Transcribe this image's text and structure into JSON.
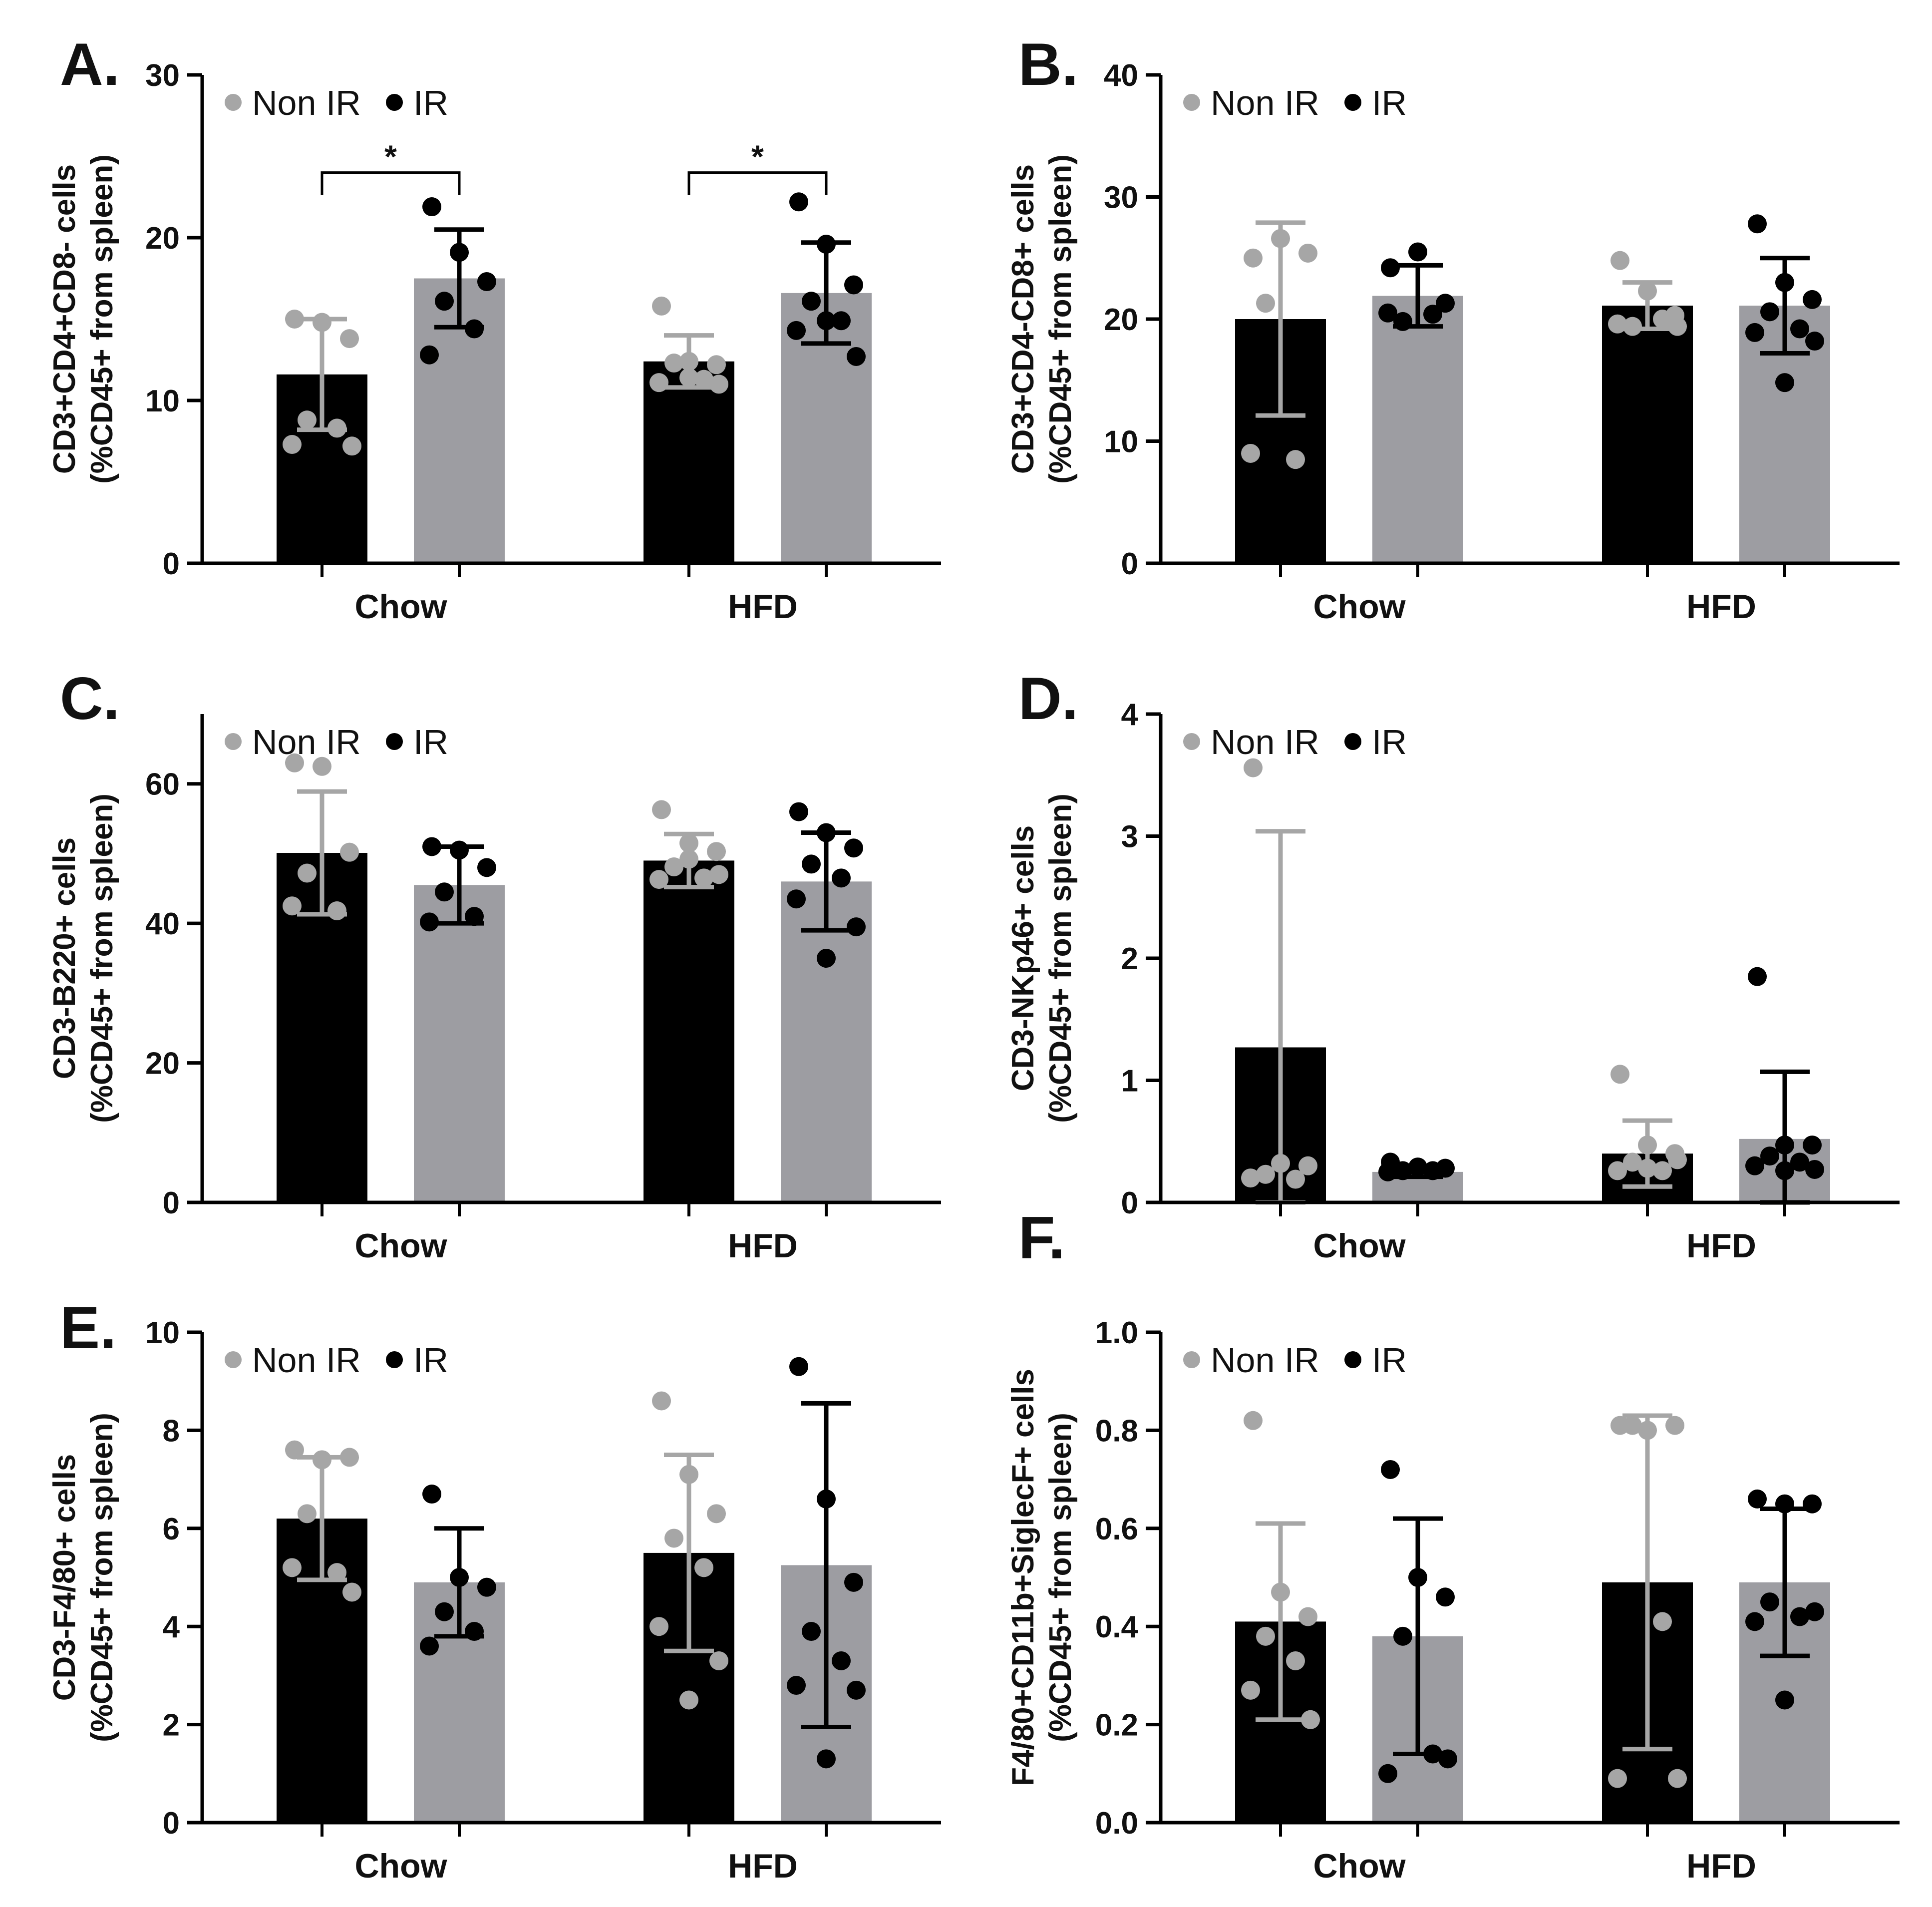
{
  "colors": {
    "black": "#000000",
    "gray": "#9d9da2",
    "light": "#a6a6a6"
  },
  "legend": {
    "non_ir": "Non IR",
    "ir": "IR"
  },
  "chart_data": [
    {
      "type": "bar",
      "label": "A.",
      "ylabel": [
        "CD3+CD4+CD8- cells",
        "(%CD45+ from spleen)"
      ],
      "ylim": [
        0,
        30
      ],
      "ticks": [
        "0",
        "10",
        "20",
        "30"
      ],
      "categories": [
        "Chow",
        "HFD"
      ],
      "series": [
        {
          "name": "Non IR",
          "means": [
            11.6,
            12.4
          ],
          "sd": [
            3.4,
            1.6
          ],
          "points": [
            [
              15,
              14.8,
              13.8,
              8.8,
              8.3,
              7.3,
              7.2
            ],
            [
              15.8,
              12.4,
              12.2,
              12.3,
              11.3,
              11.1,
              11.0,
              11.4
            ]
          ]
        },
        {
          "name": "IR",
          "means": [
            17.5,
            16.6
          ],
          "sd": [
            3.0,
            3.1
          ],
          "points": [
            [
              21.9,
              19.1,
              17.3,
              16.1,
              14.4,
              12.8
            ],
            [
              22.2,
              19.6,
              17.1,
              16.1,
              14.9,
              14.3,
              12.7,
              14.9
            ]
          ]
        }
      ],
      "significance": [
        {
          "category": "Chow",
          "label": "*",
          "y": 24.0
        },
        {
          "category": "HFD",
          "label": "*",
          "y": 24.0
        }
      ]
    },
    {
      "type": "bar",
      "label": "B.",
      "ylabel": [
        "CD3+CD4-CD8+ cells",
        "(%CD45+ from spleen)"
      ],
      "ylim": [
        0,
        40
      ],
      "ticks": [
        "0",
        "10",
        "20",
        "30",
        "40"
      ],
      "categories": [
        "Chow",
        "HFD"
      ],
      "series": [
        {
          "name": "Non IR",
          "means": [
            20.0,
            21.1
          ],
          "sd": [
            7.9,
            1.9
          ],
          "points": [
            [
              25.0,
              26.6,
              25.4,
              21.3,
              8.5,
              9.0
            ],
            [
              24.8,
              22.3,
              20.3,
              19.4,
              20.0,
              19.6,
              19.4
            ]
          ]
        },
        {
          "name": "IR",
          "means": [
            21.9,
            21.1
          ],
          "sd": [
            2.5,
            3.9
          ],
          "points": [
            [
              24.2,
              25.5,
              21.3,
              19.8,
              20.4,
              20.5
            ],
            [
              27.8,
              23.0,
              21.6,
              20.6,
              19.2,
              18.9,
              18.2,
              14.8
            ]
          ]
        }
      ],
      "significance": []
    },
    {
      "type": "bar",
      "label": "C.",
      "ylabel": [
        "CD3-B220+ cells",
        "(%CD45+ from spleen)"
      ],
      "ylim": [
        0,
        70
      ],
      "ticks": [
        "0",
        "20",
        "40",
        "60"
      ],
      "categories": [
        "Chow",
        "HFD"
      ],
      "series": [
        {
          "name": "Non IR",
          "means": [
            50.1,
            49.0
          ],
          "sd": [
            8.8,
            3.8
          ],
          "points": [
            [
              63.0,
              62.5,
              50.2,
              47.2,
              41.8,
              42.5
            ],
            [
              56.3,
              51.5,
              50.3,
              48.1,
              46.5,
              46.3,
              47.0,
              49.2
            ]
          ]
        },
        {
          "name": "IR",
          "means": [
            45.5,
            46.0
          ],
          "sd": [
            5.5,
            7.0
          ],
          "points": [
            [
              51.0,
              50.5,
              48.0,
              44.5,
              41.0,
              40.2
            ],
            [
              56.0,
              53.0,
              50.8,
              48.5,
              46.5,
              43.5,
              39.5,
              35.0
            ]
          ]
        }
      ],
      "significance": []
    },
    {
      "type": "bar",
      "label": "D.",
      "ylabel": [
        "CD3-NKp46+ cells",
        "(%CD45+ from spleen)"
      ],
      "ylim": [
        0,
        4
      ],
      "ticks": [
        "0",
        "1",
        "2",
        "3",
        "4"
      ],
      "categories": [
        "Chow",
        "HFD"
      ],
      "series": [
        {
          "name": "Non IR",
          "means": [
            1.27,
            0.4
          ],
          "sd": [
            1.77,
            0.27
          ],
          "points": [
            [
              3.56,
              0.32,
              0.3,
              0.23,
              0.19,
              0.2
            ],
            [
              1.05,
              0.47,
              0.4,
              0.33,
              0.26,
              0.26,
              0.35,
              0.28
            ]
          ]
        },
        {
          "name": "IR",
          "means": [
            0.25,
            0.52
          ],
          "sd": [
            0.04,
            0.55
          ],
          "points": [
            [
              0.33,
              0.29,
              0.28,
              0.26,
              0.26,
              0.25
            ],
            [
              1.85,
              0.47,
              0.47,
              0.38,
              0.33,
              0.3,
              0.27,
              0.26
            ]
          ]
        }
      ],
      "significance": []
    },
    {
      "type": "bar",
      "label": "E.",
      "ylabel": [
        "CD3-F4/80+ cells",
        "(%CD45+ from spleen)"
      ],
      "ylim": [
        0,
        10
      ],
      "ticks": [
        "0",
        "2",
        "4",
        "6",
        "8",
        "10"
      ],
      "categories": [
        "Chow",
        "HFD"
      ],
      "series": [
        {
          "name": "Non IR",
          "means": [
            6.2,
            5.5
          ],
          "sd": [
            1.25,
            2.0
          ],
          "points": [
            [
              7.6,
              7.4,
              7.45,
              6.3,
              5.1,
              5.2,
              4.7
            ],
            [
              8.6,
              7.1,
              6.3,
              5.8,
              5.2,
              4.0,
              3.3,
              2.5
            ]
          ]
        },
        {
          "name": "IR",
          "means": [
            4.9,
            5.25
          ],
          "sd": [
            1.1,
            3.3
          ],
          "points": [
            [
              6.7,
              5.0,
              4.8,
              4.3,
              3.9,
              3.6
            ],
            [
              9.3,
              6.6,
              4.9,
              3.9,
              3.3,
              2.8,
              2.7,
              1.3
            ]
          ]
        }
      ],
      "significance": []
    },
    {
      "type": "bar",
      "label": "F.",
      "ylabel": [
        "F4/80+CD11b+SiglecF+ cells",
        "(%CD45+ from spleen)"
      ],
      "ylim": [
        0,
        1
      ],
      "ticks": [
        "0.0",
        "0.2",
        "0.4",
        "0.6",
        "0.8",
        "1.0"
      ],
      "categories": [
        "Chow",
        "HFD"
      ],
      "series": [
        {
          "name": "Non IR",
          "means": [
            0.41,
            0.49
          ],
          "sd": [
            0.2,
            0.34
          ],
          "points": [
            [
              0.82,
              0.47,
              0.42,
              0.38,
              0.33,
              0.27,
              0.21
            ],
            [
              0.81,
              0.8,
              0.81,
              0.81,
              0.41,
              0.09,
              0.09
            ]
          ]
        },
        {
          "name": "IR",
          "means": [
            0.38,
            0.49
          ],
          "sd": [
            0.24,
            0.15
          ],
          "points": [
            [
              0.72,
              0.5,
              0.46,
              0.38,
              0.14,
              0.1,
              0.13
            ],
            [
              0.66,
              0.65,
              0.65,
              0.45,
              0.42,
              0.41,
              0.43,
              0.25
            ]
          ]
        }
      ],
      "significance": []
    }
  ]
}
